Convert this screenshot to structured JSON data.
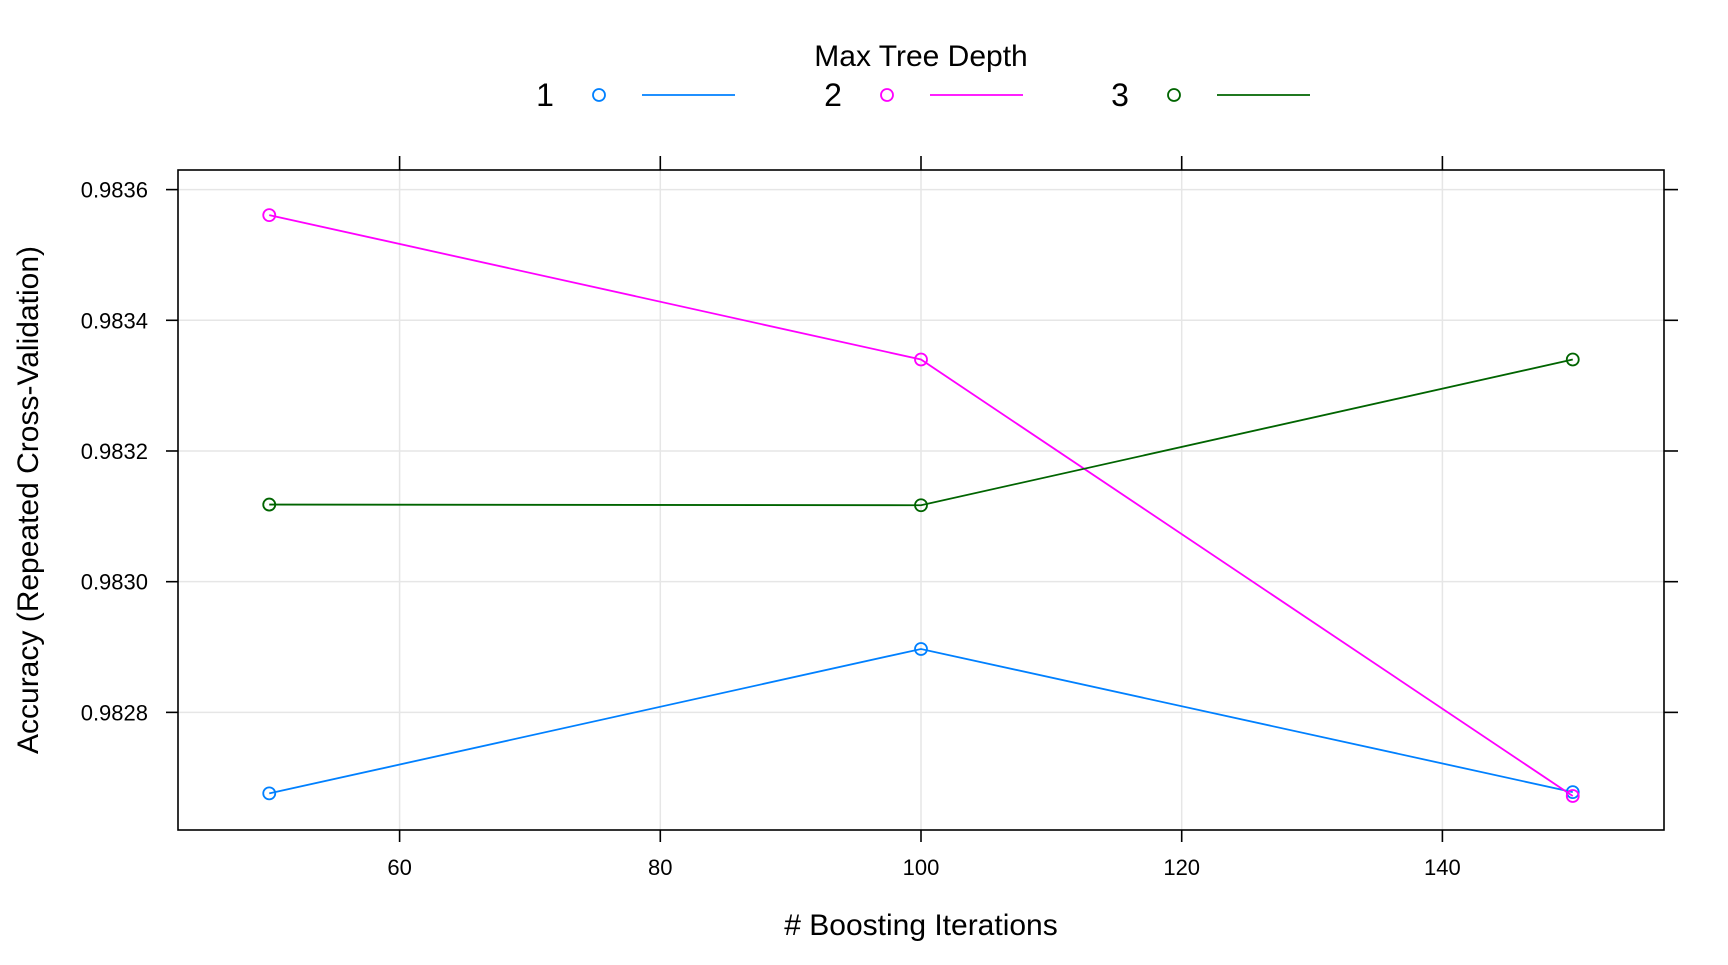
{
  "chart_data": {
    "type": "line",
    "title": "",
    "xlabel": "# Boosting Iterations",
    "ylabel": "Accuracy (Repeated Cross-Validation)",
    "legend": {
      "title": "Max Tree Depth",
      "placement": "top"
    },
    "x": [
      50,
      100,
      150
    ],
    "xlim": [
      43,
      157
    ],
    "ylim": [
      0.98262,
      0.98363
    ],
    "xticks": [
      60,
      80,
      100,
      120,
      140
    ],
    "xtick_labels": [
      "60",
      "80",
      "100",
      "120",
      "140"
    ],
    "yticks": [
      0.9828,
      0.983,
      0.9832,
      0.9834,
      0.9836
    ],
    "ytick_labels": [
      "0.9828",
      "0.9830",
      "0.9832",
      "0.9834",
      "0.9836"
    ],
    "grid": true,
    "series": [
      {
        "name": "1",
        "color": "#0080ff",
        "values": [
          0.982676,
          0.982897,
          0.982678
        ]
      },
      {
        "name": "2",
        "color": "#ff00ff",
        "values": [
          0.983561,
          0.98334,
          0.982672
        ]
      },
      {
        "name": "3",
        "color": "#006400",
        "values": [
          0.983118,
          0.983117,
          0.98334
        ]
      }
    ]
  }
}
